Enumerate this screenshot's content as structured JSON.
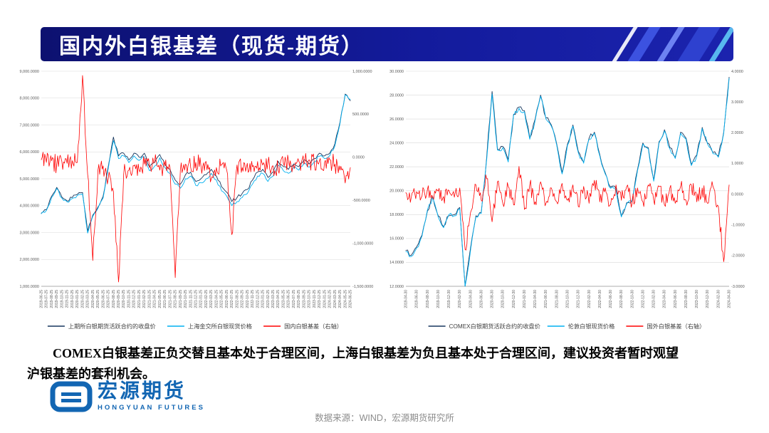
{
  "slide": {
    "title": "国内外白银基差（现货-期货）",
    "commentary": "COMEX白银基差正负交替且基本处于合理区间，上海白银基差为负且基本处于合理区间，建议投资者暂时观望沪银基差的套利机会。",
    "source": "数据来源：WIND，宏源期货研究所",
    "logo": {
      "name": "宏源期货",
      "subtitle": "HONGYUAN FUTURES"
    }
  },
  "colors": {
    "header_blue": "#131b9c",
    "dark_blue": "#17375e",
    "light_blue": "#00b0f0",
    "red": "#ff0000",
    "logo_blue": "#1266b3",
    "source_gray": "#8c8c8c"
  },
  "chart_data": [
    {
      "type": "line",
      "name": "domestic-silver-basis",
      "title": "",
      "legend_position": "bottom",
      "grid": "horizontal",
      "label_every": 1,
      "left_axis": {
        "min": 1000,
        "max": 9000,
        "step": 1000,
        "decimals": 4
      },
      "right_axis": {
        "min": -1500,
        "max": 1000,
        "step": 500,
        "decimals": 4
      },
      "x": [
        "2019-06-25",
        "2019-07-25",
        "2019-08-25",
        "2019-09-25",
        "2019-10-25",
        "2019-11-25",
        "2019-12-25",
        "2020-01-25",
        "2020-02-25",
        "2020-03-25",
        "2020-04-25",
        "2020-05-25",
        "2020-06-25",
        "2020-07-25",
        "2020-08-25",
        "2020-09-25",
        "2020-10-25",
        "2020-11-25",
        "2020-12-25",
        "2021-01-25",
        "2021-02-25",
        "2021-03-25",
        "2021-04-25",
        "2021-05-25",
        "2021-06-25",
        "2021-07-25",
        "2021-08-25",
        "2021-09-25",
        "2021-10-25",
        "2021-11-25",
        "2021-12-25",
        "2022-01-25",
        "2022-02-25",
        "2022-03-25",
        "2022-04-25",
        "2022-05-25",
        "2022-06-25",
        "2022-07-25",
        "2022-08-25",
        "2022-09-25",
        "2022-10-25",
        "2022-11-25",
        "2022-12-25",
        "2023-01-25",
        "2023-02-25",
        "2023-03-25",
        "2023-04-25",
        "2023-05-25",
        "2023-06-25",
        "2023-07-25",
        "2023-08-25",
        "2023-09-25",
        "2023-10-25",
        "2023-11-25",
        "2023-12-25",
        "2024-01-25",
        "2024-02-25",
        "2024-03-25",
        "2024-04-25",
        "2024-05-25",
        "2024-06-25"
      ],
      "series": [
        {
          "name": "上期所白银期货活跃合约的收盘价",
          "color": "#17375e",
          "axis": "left",
          "noise": 120,
          "subdiv": 3,
          "width": 0.9,
          "values": [
            3720,
            3850,
            4350,
            4680,
            4320,
            4180,
            4300,
            4420,
            4490,
            3050,
            3650,
            3950,
            4350,
            5450,
            6550,
            5850,
            5950,
            5700,
            5950,
            5800,
            5950,
            5450,
            5600,
            5900,
            5550,
            5350,
            4950,
            4800,
            5150,
            5250,
            4900,
            5000,
            5150,
            5350,
            5100,
            4700,
            4500,
            4150,
            4300,
            4450,
            4600,
            4950,
            5250,
            5350,
            5050,
            5250,
            5650,
            5450,
            5350,
            5550,
            5450,
            5700,
            5550,
            5750,
            5950,
            5850,
            5950,
            6300,
            7100,
            8150,
            7900
          ]
        },
        {
          "name": "上海金交所白银现货价格",
          "color": "#00b0f0",
          "axis": "left",
          "noise": 120,
          "subdiv": 3,
          "width": 0.9,
          "values": [
            3700,
            3820,
            4300,
            4640,
            4280,
            4140,
            4260,
            4380,
            4430,
            2980,
            3600,
            3900,
            4280,
            5380,
            6420,
            5750,
            5850,
            5600,
            5850,
            5680,
            5820,
            5300,
            5470,
            5780,
            5420,
            5200,
            4800,
            4650,
            5000,
            5100,
            4750,
            4850,
            5000,
            5200,
            4950,
            4550,
            4350,
            4000,
            4150,
            4300,
            4450,
            4800,
            5100,
            5200,
            4900,
            5100,
            5500,
            5300,
            5200,
            5420,
            5320,
            5580,
            5430,
            5630,
            5840,
            5750,
            5860,
            6220,
            7050,
            8120,
            7950
          ]
        },
        {
          "name": "国内白银基差（右轴）",
          "color": "#ff0000",
          "axis": "right",
          "noise": 220,
          "subdiv": 6,
          "width": 0.8,
          "values": [
            -30,
            -60,
            -40,
            -80,
            -50,
            -70,
            -40,
            -60,
            950,
            -200,
            -1200,
            -150,
            -100,
            -250,
            -400,
            -1450,
            -200,
            -150,
            -100,
            -150,
            -80,
            -120,
            -60,
            -150,
            -100,
            -120,
            -1400,
            -150,
            -80,
            -120,
            -60,
            -100,
            -50,
            -250,
            -120,
            -80,
            -150,
            -900,
            -90,
            -120,
            -70,
            -110,
            -50,
            -90,
            -60,
            -100,
            -150,
            -70,
            -40,
            -90,
            -50,
            -80,
            -30,
            -70,
            -40,
            -60,
            -30,
            -80,
            -150,
            -300,
            -120
          ]
        }
      ]
    },
    {
      "type": "line",
      "name": "international-silver-basis",
      "title": "",
      "legend_position": "bottom",
      "grid": "horizontal",
      "label_every": 2,
      "left_axis": {
        "min": 12,
        "max": 30,
        "step": 2,
        "decimals": 4
      },
      "right_axis": {
        "min": -3,
        "max": 4,
        "step": 1,
        "decimals": 4
      },
      "x": [
        "2019-04-30",
        "2019-05-30",
        "2019-06-30",
        "2019-07-30",
        "2019-08-30",
        "2019-09-30",
        "2019-10-30",
        "2019-11-30",
        "2019-12-30",
        "2020-01-30",
        "2020-02-30",
        "2020-03-30",
        "2020-04-30",
        "2020-05-30",
        "2020-06-30",
        "2020-07-30",
        "2020-08-30",
        "2020-09-30",
        "2020-10-30",
        "2020-11-30",
        "2020-12-30",
        "2021-01-30",
        "2021-02-30",
        "2021-03-30",
        "2021-04-30",
        "2021-05-30",
        "2021-06-30",
        "2021-07-30",
        "2021-08-30",
        "2021-09-30",
        "2021-10-30",
        "2021-11-30",
        "2021-12-30",
        "2022-01-30",
        "2022-02-30",
        "2022-03-30",
        "2022-04-30",
        "2022-05-30",
        "2022-06-30",
        "2022-07-30",
        "2022-08-30",
        "2022-09-30",
        "2022-10-30",
        "2022-11-30",
        "2022-12-30",
        "2023-01-30",
        "2023-02-30",
        "2023-03-30",
        "2023-04-30",
        "2023-05-30",
        "2023-06-30",
        "2023-07-30",
        "2023-08-30",
        "2023-09-30",
        "2023-10-30",
        "2023-11-30",
        "2023-12-30",
        "2024-01-30",
        "2024-02-30",
        "2024-03-30",
        "2024-04-30"
      ],
      "series": [
        {
          "name": "COMEX白银期货活跃合约的收盘价",
          "color": "#17375e",
          "axis": "left",
          "noise": 0.45,
          "subdiv": 3,
          "width": 0.9,
          "values": [
            15.0,
            14.6,
            15.3,
            16.3,
            18.3,
            19.5,
            17.9,
            17.0,
            17.9,
            18.0,
            18.6,
            12.0,
            15.2,
            17.9,
            18.2,
            22.8,
            28.3,
            23.5,
            23.7,
            22.6,
            26.4,
            27.0,
            26.7,
            24.4,
            26.0,
            28.0,
            26.1,
            25.5,
            23.9,
            21.5,
            23.9,
            25.5,
            23.3,
            22.4,
            24.4,
            24.9,
            23.0,
            21.5,
            20.3,
            20.2,
            17.9,
            19.0,
            19.2,
            21.8,
            24.0,
            23.6,
            20.9,
            24.1,
            25.1,
            23.6,
            22.8,
            24.9,
            24.4,
            22.2,
            23.0,
            25.3,
            24.0,
            23.2,
            22.9,
            24.9,
            29.5
          ]
        },
        {
          "name": "伦敦白银现货价格",
          "color": "#00b0f0",
          "axis": "left",
          "noise": 0.45,
          "subdiv": 3,
          "width": 0.9,
          "values": [
            14.9,
            14.5,
            15.2,
            16.2,
            18.4,
            19.4,
            17.8,
            16.9,
            18.0,
            17.9,
            18.5,
            11.8,
            15.0,
            17.8,
            18.1,
            22.6,
            28.1,
            23.4,
            23.6,
            22.4,
            26.3,
            26.9,
            26.6,
            24.3,
            25.9,
            27.9,
            26.0,
            25.4,
            23.8,
            21.4,
            23.8,
            25.4,
            23.2,
            22.3,
            24.3,
            24.8,
            22.9,
            21.4,
            20.2,
            20.1,
            17.8,
            18.9,
            19.1,
            21.7,
            23.9,
            23.5,
            20.8,
            24.0,
            25.0,
            23.5,
            22.7,
            24.8,
            24.3,
            22.1,
            22.9,
            25.2,
            23.9,
            23.1,
            22.8,
            24.8,
            29.4
          ]
        },
        {
          "name": "国外白银基差（右轴）",
          "color": "#ff0000",
          "axis": "right",
          "noise": 0.5,
          "subdiv": 6,
          "width": 0.8,
          "values": [
            0.05,
            -0.1,
            0.08,
            -0.06,
            0.15,
            -0.12,
            0.1,
            -0.08,
            0.12,
            -0.1,
            0.2,
            -1.8,
            -0.6,
            0.3,
            -0.2,
            0.5,
            -0.9,
            0.4,
            -0.3,
            0.25,
            -0.35,
            0.9,
            -0.5,
            0.3,
            -0.25,
            0.4,
            -0.3,
            0.2,
            -0.25,
            0.35,
            -0.2,
            0.3,
            -0.4,
            0.25,
            -0.3,
            0.45,
            -0.25,
            0.2,
            -0.35,
            0.3,
            -0.2,
            0.25,
            -0.3,
            0.2,
            -0.25,
            0.3,
            -0.2,
            0.25,
            -0.35,
            0.2,
            -0.3,
            0.25,
            -0.2,
            0.3,
            -0.25,
            0.2,
            -0.3,
            0.25,
            -0.4,
            -2.2,
            0.3
          ]
        }
      ]
    }
  ]
}
